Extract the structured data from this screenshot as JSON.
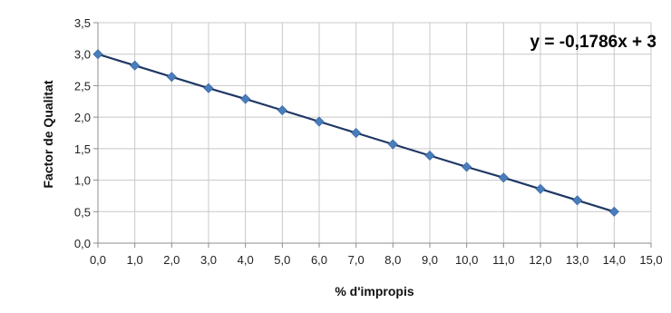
{
  "chart_data": {
    "type": "line",
    "title": "",
    "xlabel": "% d'impropis",
    "ylabel": "Factor de Qualitat",
    "xlim": [
      0,
      15
    ],
    "ylim": [
      0,
      3.5
    ],
    "x_ticks": [
      "0,0",
      "1,0",
      "2,0",
      "3,0",
      "4,0",
      "5,0",
      "6,0",
      "7,0",
      "8,0",
      "9,0",
      "10,0",
      "11,0",
      "12,0",
      "13,0",
      "14,0",
      "15,0"
    ],
    "y_ticks": [
      "0,0",
      "0,5",
      "1,0",
      "1,5",
      "2,0",
      "2,5",
      "3,0",
      "3,5"
    ],
    "grid": true,
    "legend": "none",
    "annotation": "y = -0,1786x + 3",
    "series": [
      {
        "color": "#4a7ebb",
        "line_color": "#1f3864",
        "marker": "diamond",
        "x": [
          0,
          1,
          2,
          3,
          4,
          5,
          6,
          7,
          8,
          9,
          10,
          11,
          12,
          13,
          14
        ],
        "y": [
          3.0,
          2.82,
          2.64,
          2.46,
          2.29,
          2.11,
          1.93,
          1.75,
          1.57,
          1.39,
          1.21,
          1.04,
          0.86,
          0.68,
          0.5
        ]
      }
    ]
  }
}
